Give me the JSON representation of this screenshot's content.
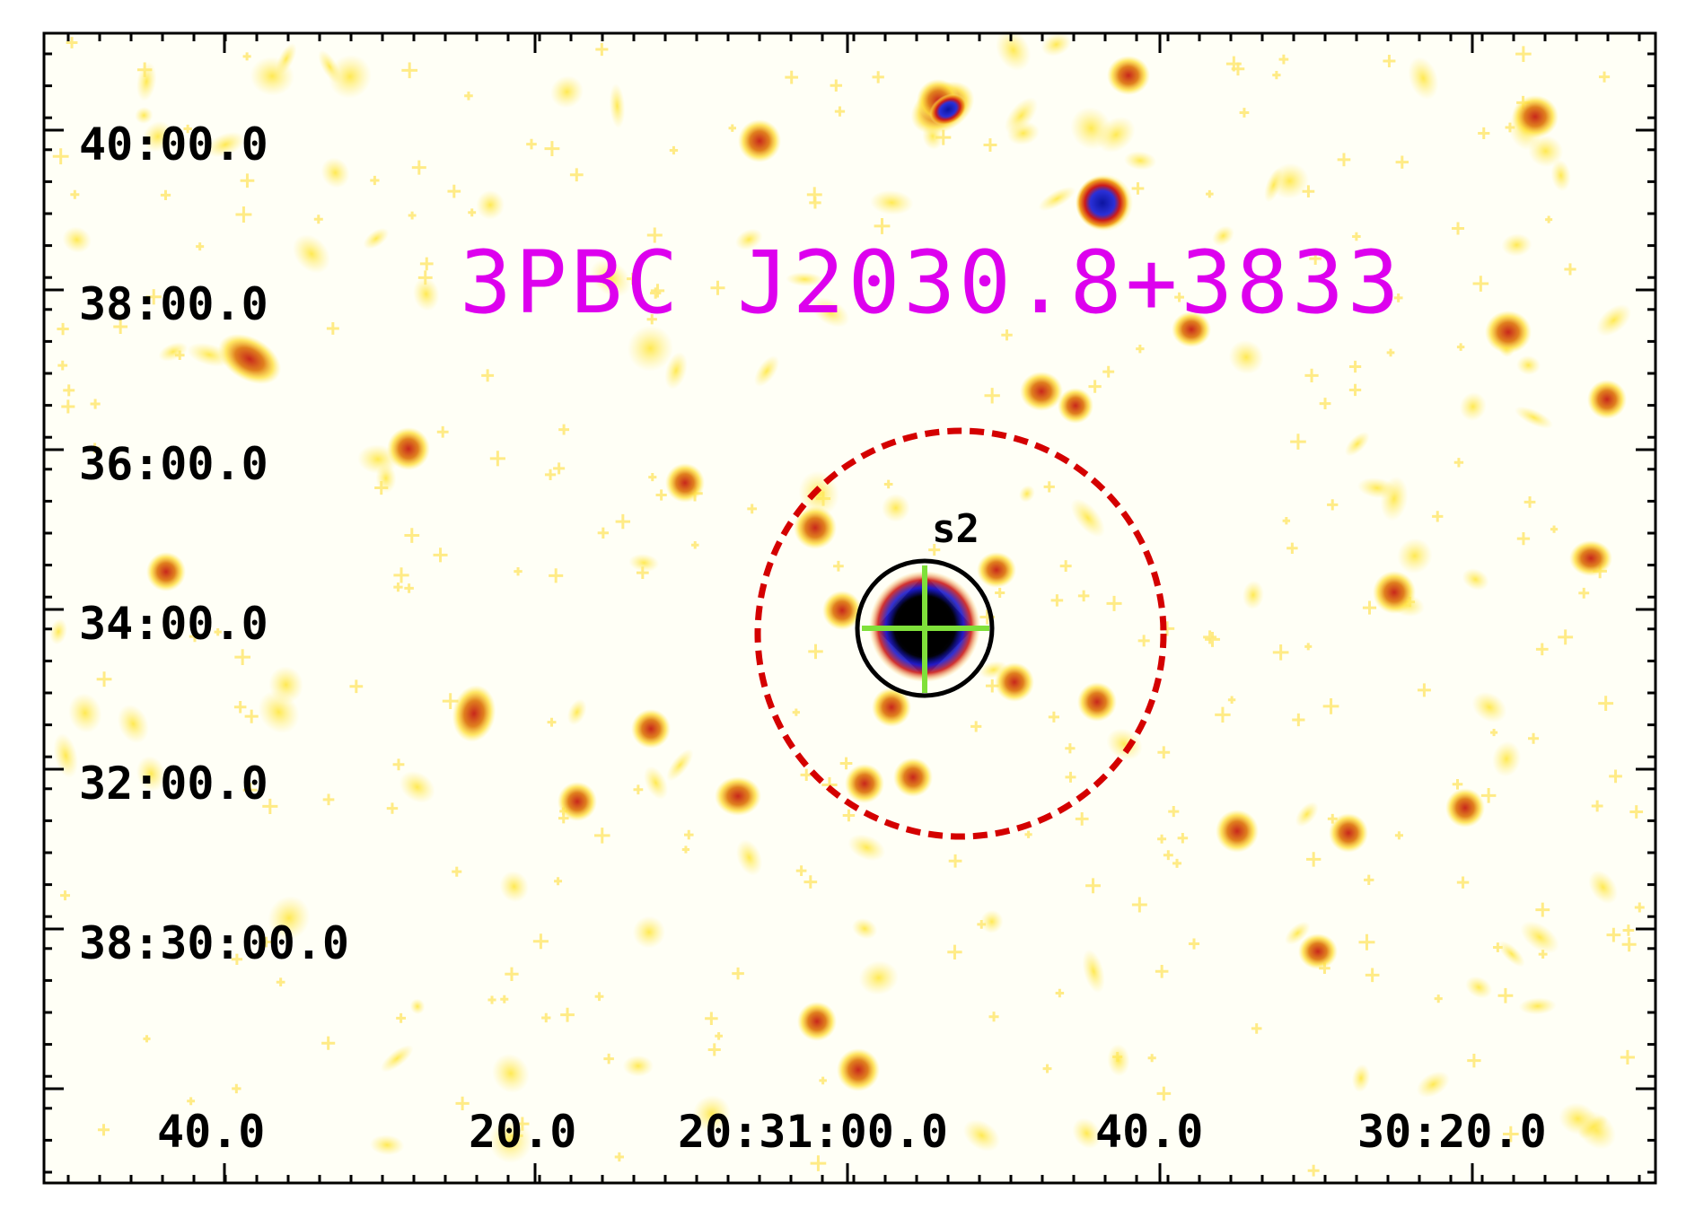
{
  "title": "3PBC J2030.8+3833",
  "source_label": "s2",
  "y_tick_labels": [
    "40:00.0",
    "38:00.0",
    "36:00.0",
    "34:00.0",
    "32:00.0",
    "38:30:00.0"
  ],
  "x_tick_labels": [
    "40.0",
    "20.0",
    "20:31:00.0",
    "40.0",
    "30:20.0"
  ],
  "colors": {
    "title": "#dd00ee",
    "error_circle": "#d40000",
    "source_circle": "#000000",
    "crosshair": "#7fe03a",
    "background": "#fffff6",
    "faint_blob": "#ffee55",
    "mid_blob": "#e08020",
    "bright_blob": "#cc1a1a",
    "peak": "#1a20c8"
  }
}
